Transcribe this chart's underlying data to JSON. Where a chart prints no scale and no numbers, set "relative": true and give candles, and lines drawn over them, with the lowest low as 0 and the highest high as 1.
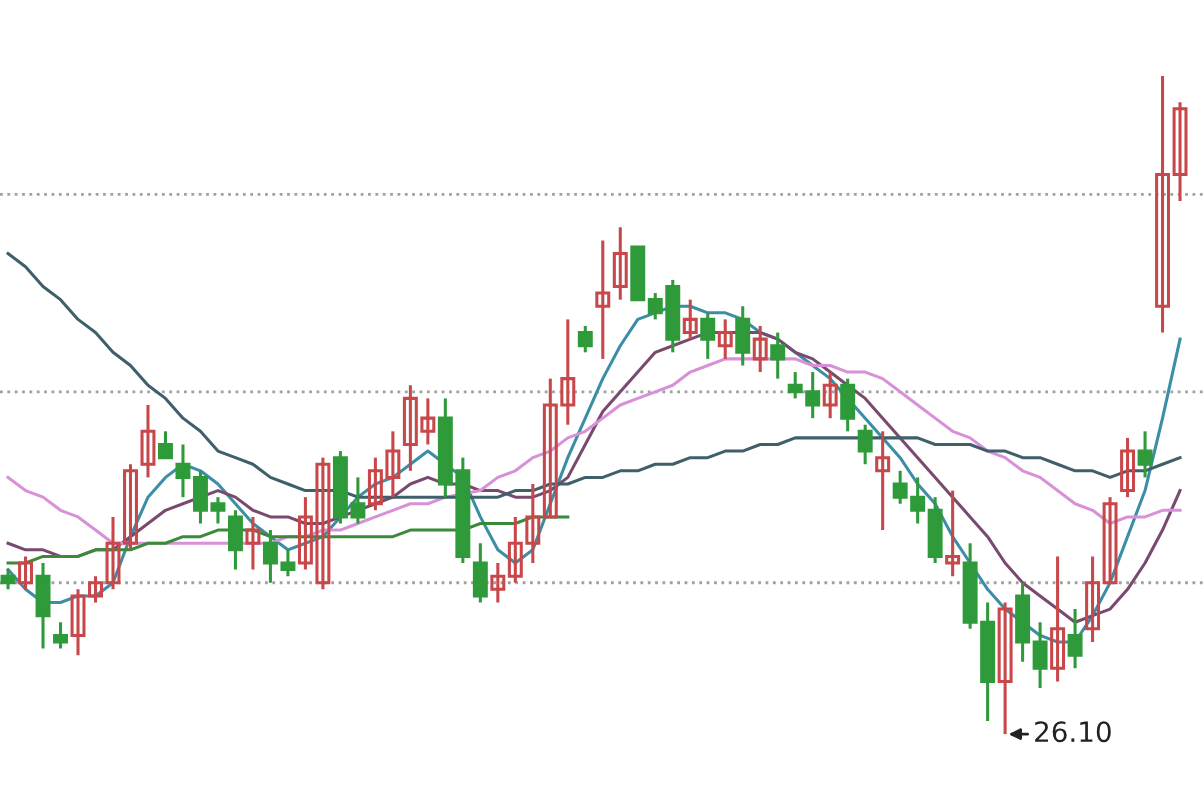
{
  "chart_data": {
    "type": "candlestick",
    "relative": true,
    "grid": false,
    "legend": false,
    "categories": [
      null,
      null,
      null,
      null,
      null,
      null,
      null,
      null,
      null,
      null,
      null,
      null,
      null,
      null,
      null,
      null,
      null,
      null,
      null,
      null,
      null,
      null,
      null,
      null,
      null,
      null,
      null,
      null,
      null,
      null,
      null,
      null,
      null,
      null,
      null,
      null,
      null,
      null,
      null,
      null,
      null,
      null,
      null,
      null,
      null,
      null,
      null,
      null,
      null,
      null,
      null,
      null,
      null,
      null,
      null,
      null,
      null,
      null,
      null,
      null,
      null,
      null,
      null,
      null,
      null,
      null,
      null,
      null
    ],
    "ohlc": [
      [
        0.24,
        0.25,
        0.22,
        0.23
      ],
      [
        0.23,
        0.27,
        0.22,
        0.26
      ],
      [
        0.24,
        0.26,
        0.13,
        0.18
      ],
      [
        0.15,
        0.17,
        0.13,
        0.14
      ],
      [
        0.15,
        0.22,
        0.12,
        0.21
      ],
      [
        0.21,
        0.24,
        0.2,
        0.23
      ],
      [
        0.23,
        0.33,
        0.22,
        0.29
      ],
      [
        0.29,
        0.41,
        0.28,
        0.4
      ],
      [
        0.41,
        0.5,
        0.39,
        0.46
      ],
      [
        0.44,
        0.46,
        0.42,
        0.42
      ],
      [
        0.41,
        0.44,
        0.36,
        0.39
      ],
      [
        0.39,
        0.4,
        0.32,
        0.34
      ],
      [
        0.35,
        0.36,
        0.32,
        0.34
      ],
      [
        0.33,
        0.34,
        0.25,
        0.28
      ],
      [
        0.29,
        0.33,
        0.25,
        0.31
      ],
      [
        0.29,
        0.31,
        0.23,
        0.26
      ],
      [
        0.26,
        0.28,
        0.24,
        0.25
      ],
      [
        0.26,
        0.36,
        0.25,
        0.33
      ],
      [
        0.23,
        0.42,
        0.22,
        0.41
      ],
      [
        0.42,
        0.43,
        0.32,
        0.33
      ],
      [
        0.35,
        0.39,
        0.32,
        0.33
      ],
      [
        0.35,
        0.42,
        0.34,
        0.4
      ],
      [
        0.39,
        0.46,
        0.36,
        0.43
      ],
      [
        0.44,
        0.53,
        0.4,
        0.51
      ],
      [
        0.46,
        0.51,
        0.44,
        0.48
      ],
      [
        0.48,
        0.51,
        0.36,
        0.38
      ],
      [
        0.4,
        0.42,
        0.26,
        0.27
      ],
      [
        0.26,
        0.29,
        0.2,
        0.21
      ],
      [
        0.22,
        0.26,
        0.2,
        0.24
      ],
      [
        0.24,
        0.33,
        0.23,
        0.29
      ],
      [
        0.29,
        0.38,
        0.26,
        0.33
      ],
      [
        0.33,
        0.54,
        0.33,
        0.5
      ],
      [
        0.5,
        0.63,
        0.47,
        0.54
      ],
      [
        0.61,
        0.62,
        0.58,
        0.59
      ],
      [
        0.65,
        0.75,
        0.57,
        0.67
      ],
      [
        0.68,
        0.77,
        0.66,
        0.73
      ],
      [
        0.74,
        0.74,
        0.66,
        0.66
      ],
      [
        0.66,
        0.67,
        0.63,
        0.64
      ],
      [
        0.68,
        0.69,
        0.58,
        0.6
      ],
      [
        0.61,
        0.66,
        0.6,
        0.63
      ],
      [
        0.63,
        0.64,
        0.57,
        0.6
      ],
      [
        0.59,
        0.63,
        0.57,
        0.61
      ],
      [
        0.63,
        0.65,
        0.56,
        0.58
      ],
      [
        0.57,
        0.62,
        0.55,
        0.6
      ],
      [
        0.59,
        0.61,
        0.54,
        0.57
      ],
      [
        0.53,
        0.55,
        0.51,
        0.52
      ],
      [
        0.52,
        0.55,
        0.48,
        0.5
      ],
      [
        0.5,
        0.55,
        0.48,
        0.53
      ],
      [
        0.53,
        0.54,
        0.46,
        0.48
      ],
      [
        0.46,
        0.47,
        0.41,
        0.43
      ],
      [
        0.4,
        0.46,
        0.31,
        0.42
      ],
      [
        0.38,
        0.4,
        0.35,
        0.36
      ],
      [
        0.36,
        0.39,
        0.32,
        0.34
      ],
      [
        0.34,
        0.36,
        0.26,
        0.27
      ],
      [
        0.26,
        0.37,
        0.24,
        0.27
      ],
      [
        0.26,
        0.29,
        0.16,
        0.17
      ],
      [
        0.17,
        0.2,
        0.02,
        0.08
      ],
      [
        0.08,
        0.2,
        0,
        0.19
      ],
      [
        0.21,
        0.23,
        0.11,
        0.14
      ],
      [
        0.14,
        0.17,
        0.07,
        0.1
      ],
      [
        0.1,
        0.27,
        0.08,
        0.16
      ],
      [
        0.15,
        0.19,
        0.1,
        0.12
      ],
      [
        0.16,
        0.27,
        0.14,
        0.23
      ],
      [
        0.23,
        0.36,
        0.23,
        0.35
      ],
      [
        0.37,
        0.45,
        0.36,
        0.43
      ],
      [
        0.43,
        0.46,
        0.39,
        0.41
      ],
      [
        0.65,
        1,
        0.61,
        0.85
      ],
      [
        0.85,
        0.96,
        0.81,
        0.95
      ]
    ],
    "colors": [
      "#2e9a3a",
      "#c8474a",
      "#2e9a3a",
      "#2e9a3a",
      "#c8474a",
      "#c8474a",
      "#c8474a",
      "#c8474a",
      "#c8474a",
      "#2e9a3a",
      "#2e9a3a",
      "#2e9a3a",
      "#2e9a3a",
      "#2e9a3a",
      "#c8474a",
      "#2e9a3a",
      "#2e9a3a",
      "#c8474a",
      "#c8474a",
      "#2e9a3a",
      "#2e9a3a",
      "#c8474a",
      "#c8474a",
      "#c8474a",
      "#c8474a",
      "#2e9a3a",
      "#2e9a3a",
      "#2e9a3a",
      "#c8474a",
      "#c8474a",
      "#c8474a",
      "#c8474a",
      "#c8474a",
      "#2e9a3a",
      "#c8474a",
      "#c8474a",
      "#2e9a3a",
      "#2e9a3a",
      "#2e9a3a",
      "#c8474a",
      "#2e9a3a",
      "#c8474a",
      "#2e9a3a",
      "#c8474a",
      "#2e9a3a",
      "#2e9a3a",
      "#2e9a3a",
      "#c8474a",
      "#2e9a3a",
      "#2e9a3a",
      "#c8474a",
      "#2e9a3a",
      "#2e9a3a",
      "#2e9a3a",
      "#c8474a",
      "#2e9a3a",
      "#2e9a3a",
      "#c8474a",
      "#2e9a3a",
      "#2e9a3a",
      "#c8474a",
      "#2e9a3a",
      "#c8474a",
      "#c8474a",
      "#c8474a",
      "#2e9a3a",
      "#c8474a",
      "#c8474a"
    ],
    "series": [
      {
        "type": "line",
        "color": "#3b8ea5",
        "values": [
          0.25,
          0.22,
          0.2,
          0.2,
          0.21,
          0.21,
          0.23,
          0.3,
          0.36,
          0.39,
          0.41,
          0.4,
          0.38,
          0.35,
          0.32,
          0.3,
          0.28,
          0.29,
          0.3,
          0.33,
          0.36,
          0.38,
          0.39,
          0.41,
          0.43,
          0.41,
          0.39,
          0.33,
          0.28,
          0.26,
          0.28,
          0.35,
          0.42,
          0.48,
          0.54,
          0.59,
          0.63,
          0.64,
          0.65,
          0.65,
          0.64,
          0.64,
          0.63,
          0.61,
          0.6,
          0.58,
          0.56,
          0.54,
          0.51,
          0.48,
          0.45,
          0.42,
          0.38,
          0.35,
          0.3,
          0.26,
          0.22,
          0.19,
          0.17,
          0.15,
          0.14,
          0.14,
          0.18,
          0.23,
          0.3,
          0.37,
          0.48,
          0.6
        ]
      },
      {
        "type": "line",
        "color": "#7a4a6e",
        "values": [
          0.29,
          0.28,
          0.28,
          0.27,
          0.27,
          0.28,
          0.28,
          0.3,
          0.32,
          0.34,
          0.35,
          0.36,
          0.37,
          0.36,
          0.34,
          0.33,
          0.33,
          0.32,
          0.32,
          0.33,
          0.34,
          0.35,
          0.36,
          0.38,
          0.39,
          0.38,
          0.38,
          0.37,
          0.37,
          0.36,
          0.36,
          0.37,
          0.39,
          0.44,
          0.49,
          0.52,
          0.55,
          0.58,
          0.59,
          0.6,
          0.61,
          0.61,
          0.61,
          0.61,
          0.6,
          0.58,
          0.57,
          0.55,
          0.53,
          0.51,
          0.48,
          0.45,
          0.42,
          0.39,
          0.36,
          0.33,
          0.3,
          0.26,
          0.23,
          0.21,
          0.19,
          0.17,
          0.18,
          0.19,
          0.22,
          0.26,
          0.31,
          0.37
        ]
      },
      {
        "type": "line",
        "color": "#d891d8",
        "values": [
          0.39,
          0.37,
          0.36,
          0.34,
          0.33,
          0.31,
          0.29,
          0.29,
          0.29,
          0.29,
          0.29,
          0.29,
          0.29,
          0.29,
          0.29,
          0.29,
          0.3,
          0.3,
          0.31,
          0.31,
          0.32,
          0.33,
          0.34,
          0.35,
          0.35,
          0.36,
          null,
          0.37,
          0.39,
          0.4,
          0.42,
          0.43,
          0.45,
          0.46,
          0.48,
          0.5,
          0.51,
          0.52,
          0.53,
          0.55,
          0.56,
          0.57,
          0.57,
          0.57,
          0.57,
          0.57,
          0.56,
          0.56,
          0.55,
          0.55,
          0.54,
          0.52,
          0.5,
          0.48,
          0.46,
          0.45,
          0.43,
          0.42,
          0.4,
          0.39,
          0.37,
          0.35,
          0.34,
          0.32,
          0.33,
          0.33,
          0.34,
          0.34
        ]
      },
      {
        "type": "line",
        "color": "#3f5f6a",
        "values": [
          0.73,
          0.71,
          0.68,
          0.66,
          0.63,
          0.61,
          0.58,
          0.56,
          0.53,
          0.51,
          0.48,
          0.46,
          0.43,
          0.42,
          0.41,
          0.39,
          0.38,
          0.37,
          0.37,
          0.37,
          0.36,
          0.36,
          0.36,
          0.36,
          0.36,
          0.36,
          0.36,
          0.36,
          0.36,
          0.37,
          0.37,
          0.38,
          0.38,
          0.39,
          0.39,
          0.4,
          0.4,
          0.41,
          0.41,
          0.42,
          0.42,
          0.43,
          0.43,
          0.44,
          0.44,
          0.45,
          0.45,
          0.45,
          0.45,
          0.45,
          0.45,
          0.45,
          0.45,
          0.44,
          0.44,
          0.44,
          0.43,
          0.43,
          0.42,
          0.42,
          0.41,
          0.4,
          0.4,
          0.39,
          0.4,
          0.4,
          0.41,
          0.42
        ]
      },
      {
        "type": "line",
        "color": "#3a8a3a",
        "values": [
          0.26,
          0.26,
          0.27,
          0.27,
          0.27,
          0.28,
          0.28,
          0.28,
          0.29,
          0.29,
          0.3,
          0.3,
          0.31,
          0.31,
          0.31,
          0.3,
          0.3,
          0.3,
          0.3,
          0.3,
          0.3,
          0.3,
          0.3,
          0.31,
          0.31,
          0.31,
          0.31,
          0.32,
          0.32,
          0.32,
          0.33,
          0.33,
          0.33,
          null,
          null,
          null,
          null,
          null,
          null,
          null,
          null,
          null,
          null,
          null,
          null,
          null,
          null,
          null,
          null,
          null,
          null,
          null,
          null,
          null,
          null,
          null,
          null,
          null,
          null,
          null,
          null,
          null,
          null,
          null,
          null,
          null,
          null,
          null
        ]
      }
    ],
    "ref_lines": [
      {
        "axis": "y",
        "value": 0.82,
        "color": "#a0a0a0",
        "line_style": "dotted"
      },
      {
        "axis": "y",
        "value": 0.52,
        "color": "#a0a0a0",
        "line_style": "dotted"
      },
      {
        "axis": "y",
        "value": 0.23,
        "color": "#a0a0a0",
        "line_style": "dotted"
      }
    ],
    "annotations": [
      "26.10"
    ]
  }
}
